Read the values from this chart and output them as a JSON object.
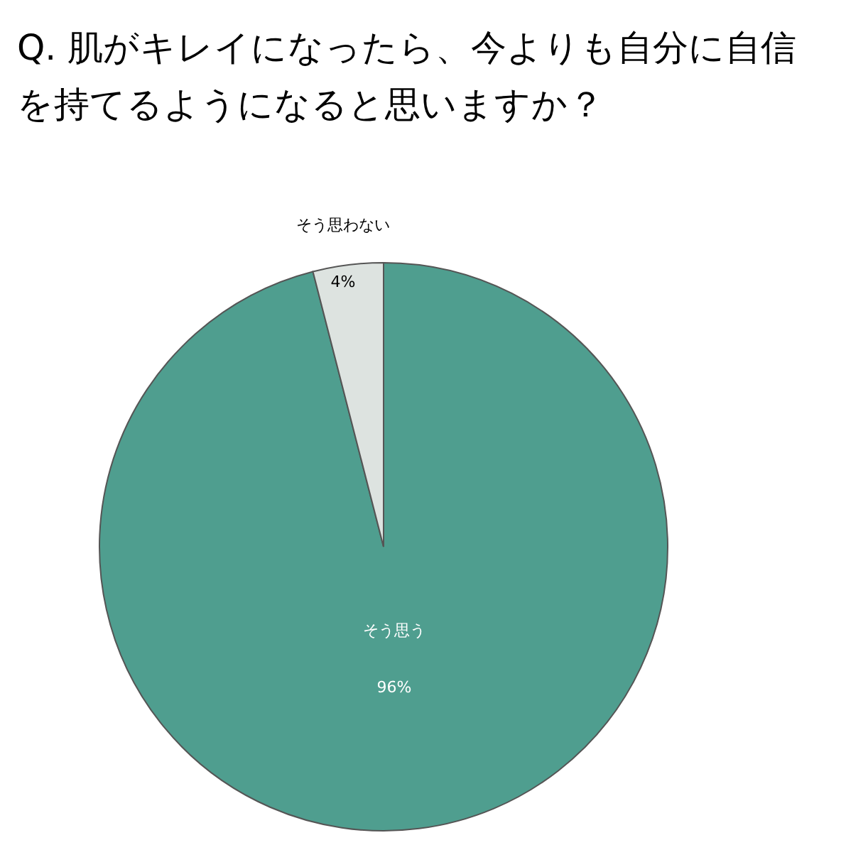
{
  "chart_data": {
    "type": "pie",
    "title": "Q. 肌がキレイになったら、今よりも自分に自信を持てるようになると思いますか？",
    "categories": [
      "そう思う",
      "そう思わない"
    ],
    "values": [
      96,
      4
    ],
    "colors": [
      "#4f9e8f",
      "#dde3e0"
    ],
    "value_labels": [
      "96%",
      "4%"
    ]
  }
}
